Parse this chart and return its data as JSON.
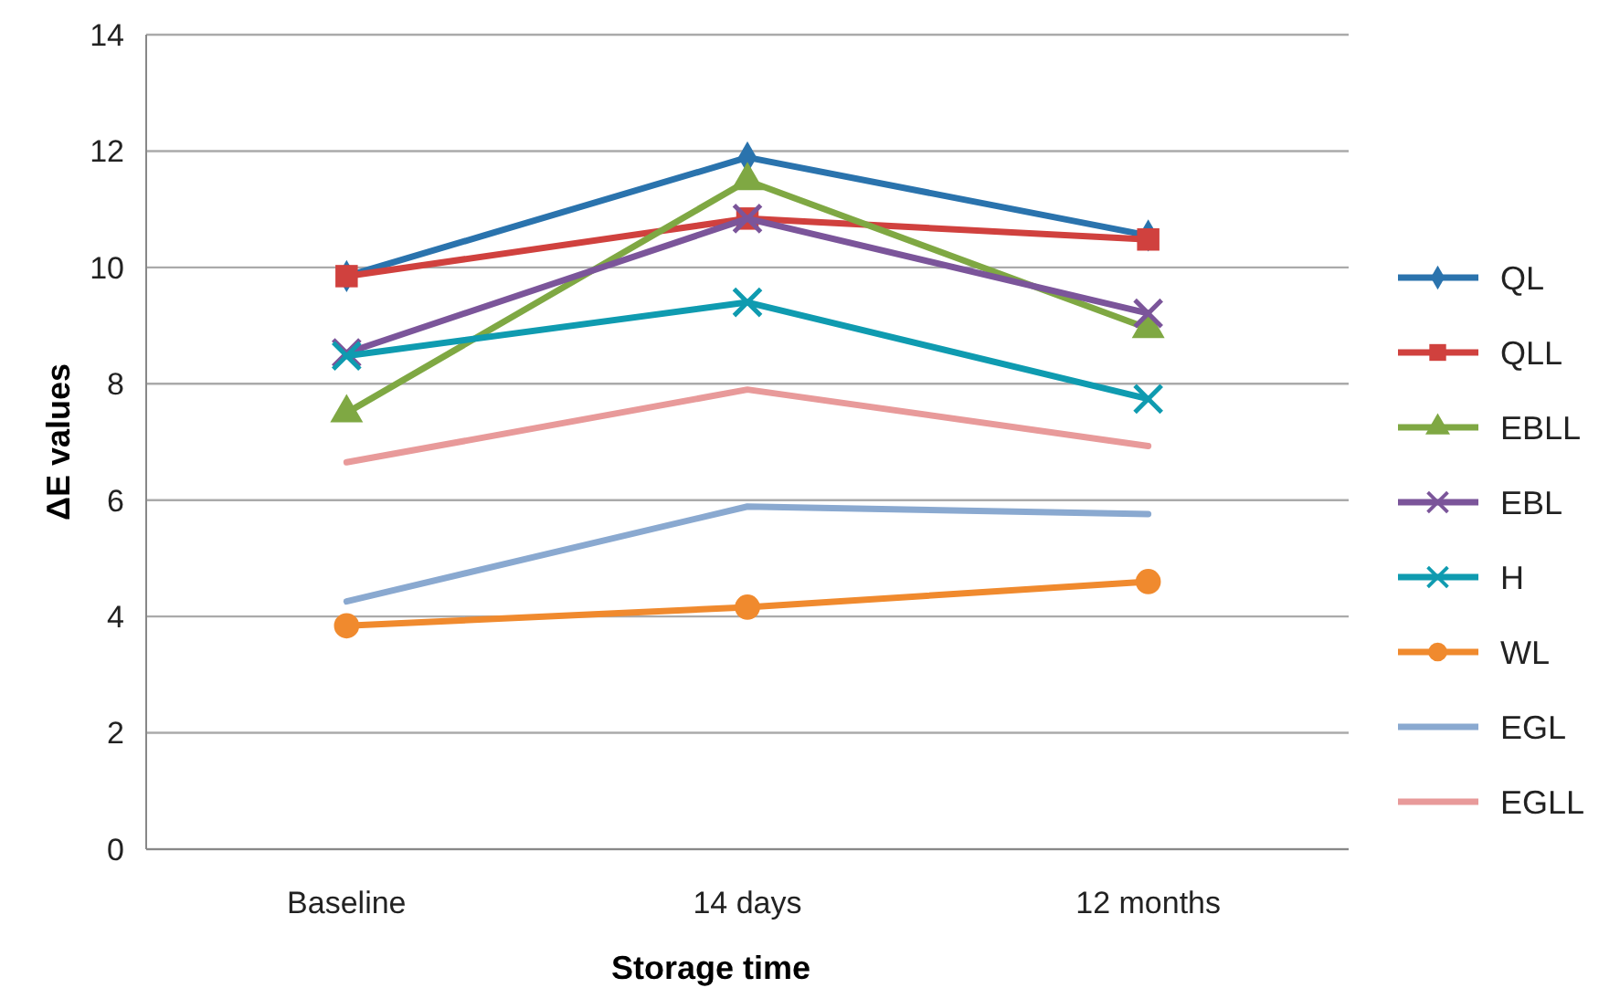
{
  "chart_data": {
    "type": "line",
    "xlabel": "Storage time",
    "ylabel": "ΔE values",
    "categories": [
      "Baseline",
      "14 days",
      "12 months"
    ],
    "ylim": [
      0,
      14
    ],
    "yticks": [
      0,
      2,
      4,
      6,
      8,
      10,
      12,
      14
    ],
    "grid": "y",
    "legend": "right",
    "series": [
      {
        "name": "QL",
        "color": "#2a73ad",
        "marker": "diamond",
        "values": [
          9.85,
          11.89,
          10.55
        ]
      },
      {
        "name": "QLL",
        "color": "#d0413e",
        "marker": "square",
        "values": [
          9.85,
          10.84,
          10.48
        ]
      },
      {
        "name": "EBLL",
        "color": "#7fa843",
        "marker": "triangle",
        "values": [
          7.5,
          11.49,
          8.95
        ]
      },
      {
        "name": "EBL",
        "color": "#7b559a",
        "marker": "cross",
        "values": [
          8.53,
          10.84,
          9.21
        ]
      },
      {
        "name": "H",
        "color": "#0f9bb0",
        "marker": "cross",
        "values": [
          8.48,
          9.4,
          7.74
        ]
      },
      {
        "name": "WL",
        "color": "#f08a2e",
        "marker": "circle",
        "values": [
          3.84,
          4.16,
          4.6
        ]
      },
      {
        "name": "EGL",
        "color": "#8aa9d0",
        "marker": "none",
        "values": [
          4.26,
          5.89,
          5.76
        ]
      },
      {
        "name": "EGLL",
        "color": "#e89a9a",
        "marker": "none",
        "values": [
          6.65,
          7.9,
          6.93
        ]
      }
    ]
  }
}
